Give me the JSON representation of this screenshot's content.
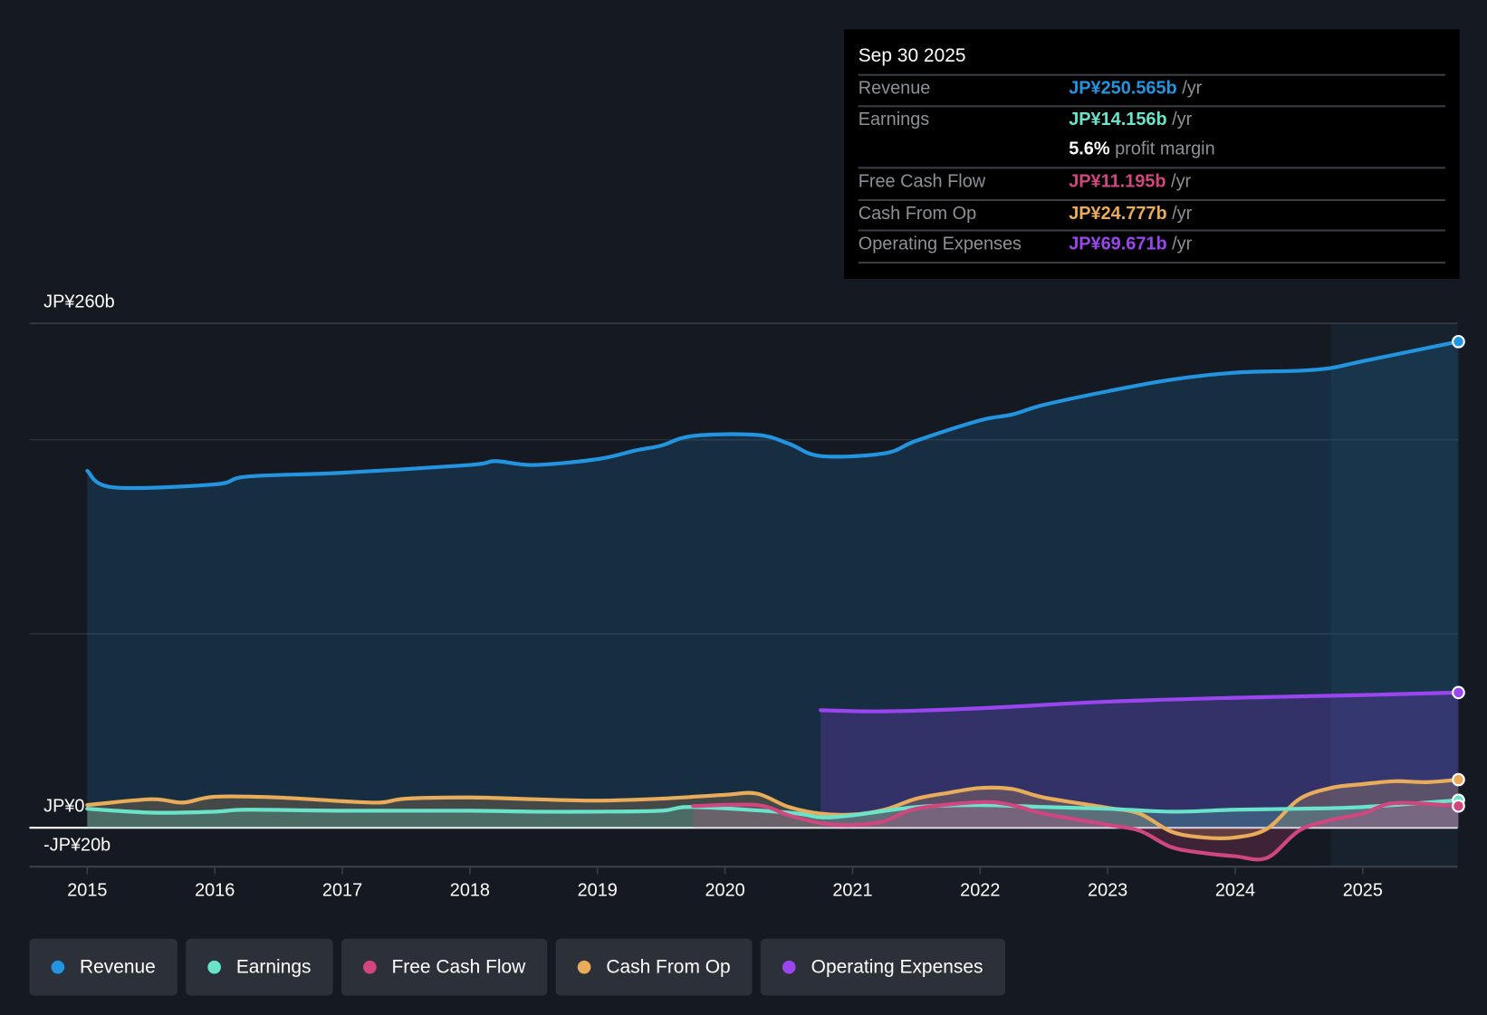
{
  "tooltip": {
    "date": "Sep 30 2025",
    "rows": [
      {
        "label": "Revenue",
        "value": "JP¥250.565b",
        "unit": "/yr",
        "color": "#2394df"
      },
      {
        "label": "Earnings",
        "value": "JP¥14.156b",
        "unit": "/yr",
        "color": "#6ae3cb"
      },
      {
        "label": "",
        "value": "5.6%",
        "unit": "profit margin",
        "color": "#ffffff"
      },
      {
        "label": "Free Cash Flow",
        "value": "JP¥11.195b",
        "unit": "/yr",
        "color": "#d0467f"
      },
      {
        "label": "Cash From Op",
        "value": "JP¥24.777b",
        "unit": "/yr",
        "color": "#e8ac5a"
      },
      {
        "label": "Operating Expenses",
        "value": "JP¥69.671b",
        "unit": "/yr",
        "color": "#9b45f0"
      }
    ]
  },
  "chart_data": {
    "type": "area",
    "title": "",
    "y_top_label": "JP¥260b",
    "y_zero_label": "JP¥0",
    "y_bottom_label": "-JP¥20b",
    "ylim": [
      -20,
      260
    ],
    "xlim": [
      2014.55,
      2025.8
    ],
    "x_ticks": [
      "2015",
      "2016",
      "2017",
      "2018",
      "2019",
      "2020",
      "2021",
      "2022",
      "2023",
      "2024",
      "2025"
    ],
    "forecast_start": 2024.75,
    "series": [
      {
        "name": "Revenue",
        "color": "#2394df",
        "x": [
          2015,
          2015.2,
          2016,
          2016.25,
          2017,
          2018,
          2018.2,
          2018.5,
          2019,
          2019.3,
          2019.5,
          2019.75,
          2020.25,
          2020.5,
          2020.75,
          2021.25,
          2021.5,
          2022,
          2022.25,
          2022.5,
          2023,
          2023.5,
          2024,
          2024.5,
          2024.75,
          2025,
          2025.75
        ],
        "y": [
          184,
          175.5,
          177,
          181,
          183,
          187,
          189,
          187,
          190,
          194.5,
          197,
          202,
          202.5,
          198,
          191.6,
          193,
          199.5,
          210,
          213,
          218,
          225,
          231,
          234.6,
          235.6,
          237,
          240.5,
          250.6
        ]
      },
      {
        "name": "Operating Expenses",
        "color": "#9b45f0",
        "x": [
          2020.75,
          2021.25,
          2022,
          2023,
          2024,
          2025,
          2025.75
        ],
        "y": [
          60.6,
          60,
          61.6,
          65,
          67,
          68.4,
          69.7
        ]
      },
      {
        "name": "Cash From Op",
        "color": "#e8ac5a",
        "x": [
          2015,
          2015.5,
          2015.75,
          2016,
          2016.5,
          2017,
          2017.3,
          2017.5,
          2018,
          2018.5,
          2019,
          2019.5,
          2020,
          2020.25,
          2020.5,
          2020.75,
          2021,
          2021.25,
          2021.5,
          2021.75,
          2022,
          2022.25,
          2022.5,
          2023,
          2023.25,
          2023.5,
          2023.75,
          2024,
          2024.25,
          2024.5,
          2024.75,
          2025,
          2025.25,
          2025.5,
          2025.75
        ],
        "y": [
          11.7,
          14.7,
          13,
          16,
          15.6,
          13.7,
          13,
          15,
          15.6,
          14.7,
          14,
          15,
          17,
          17.6,
          10.7,
          7.3,
          6.8,
          9.3,
          15,
          18,
          20.5,
          20,
          15.6,
          10.3,
          7.3,
          -2,
          -5,
          -5,
          -0.5,
          14.7,
          20.5,
          22.5,
          24,
          23.5,
          24.8
        ]
      },
      {
        "name": "Earnings",
        "color": "#6ae3cb",
        "x": [
          2015,
          2015.5,
          2016,
          2016.25,
          2017,
          2018,
          2018.5,
          2019,
          2019.5,
          2019.75,
          2020.5,
          2020.75,
          2021,
          2021.5,
          2022,
          2022.5,
          2023,
          2023.5,
          2024,
          2024.5,
          2025,
          2025.75
        ],
        "y": [
          9.8,
          7.8,
          8.3,
          9.3,
          8.8,
          8.8,
          8.3,
          8.3,
          8.8,
          10.7,
          7.8,
          5.4,
          6.4,
          10.7,
          11.7,
          10.7,
          9.8,
          8.3,
          9.3,
          9.8,
          10.7,
          14.2
        ]
      },
      {
        "name": "Free Cash Flow",
        "color": "#d0467f",
        "x": [
          2019.75,
          2020.25,
          2020.5,
          2020.75,
          2021,
          2021.25,
          2021.5,
          2022,
          2022.25,
          2022.5,
          2023,
          2023.25,
          2023.5,
          2023.75,
          2024,
          2024.25,
          2024.5,
          2024.75,
          2025,
          2025.25,
          2025.75
        ],
        "y": [
          11.2,
          11.7,
          6.4,
          2.4,
          1.5,
          3.4,
          9.8,
          13.2,
          11.7,
          7.3,
          1.5,
          -1.5,
          -10,
          -13,
          -14.7,
          -15.5,
          -1.5,
          4,
          7.3,
          12.7,
          11.2
        ]
      }
    ]
  }
}
